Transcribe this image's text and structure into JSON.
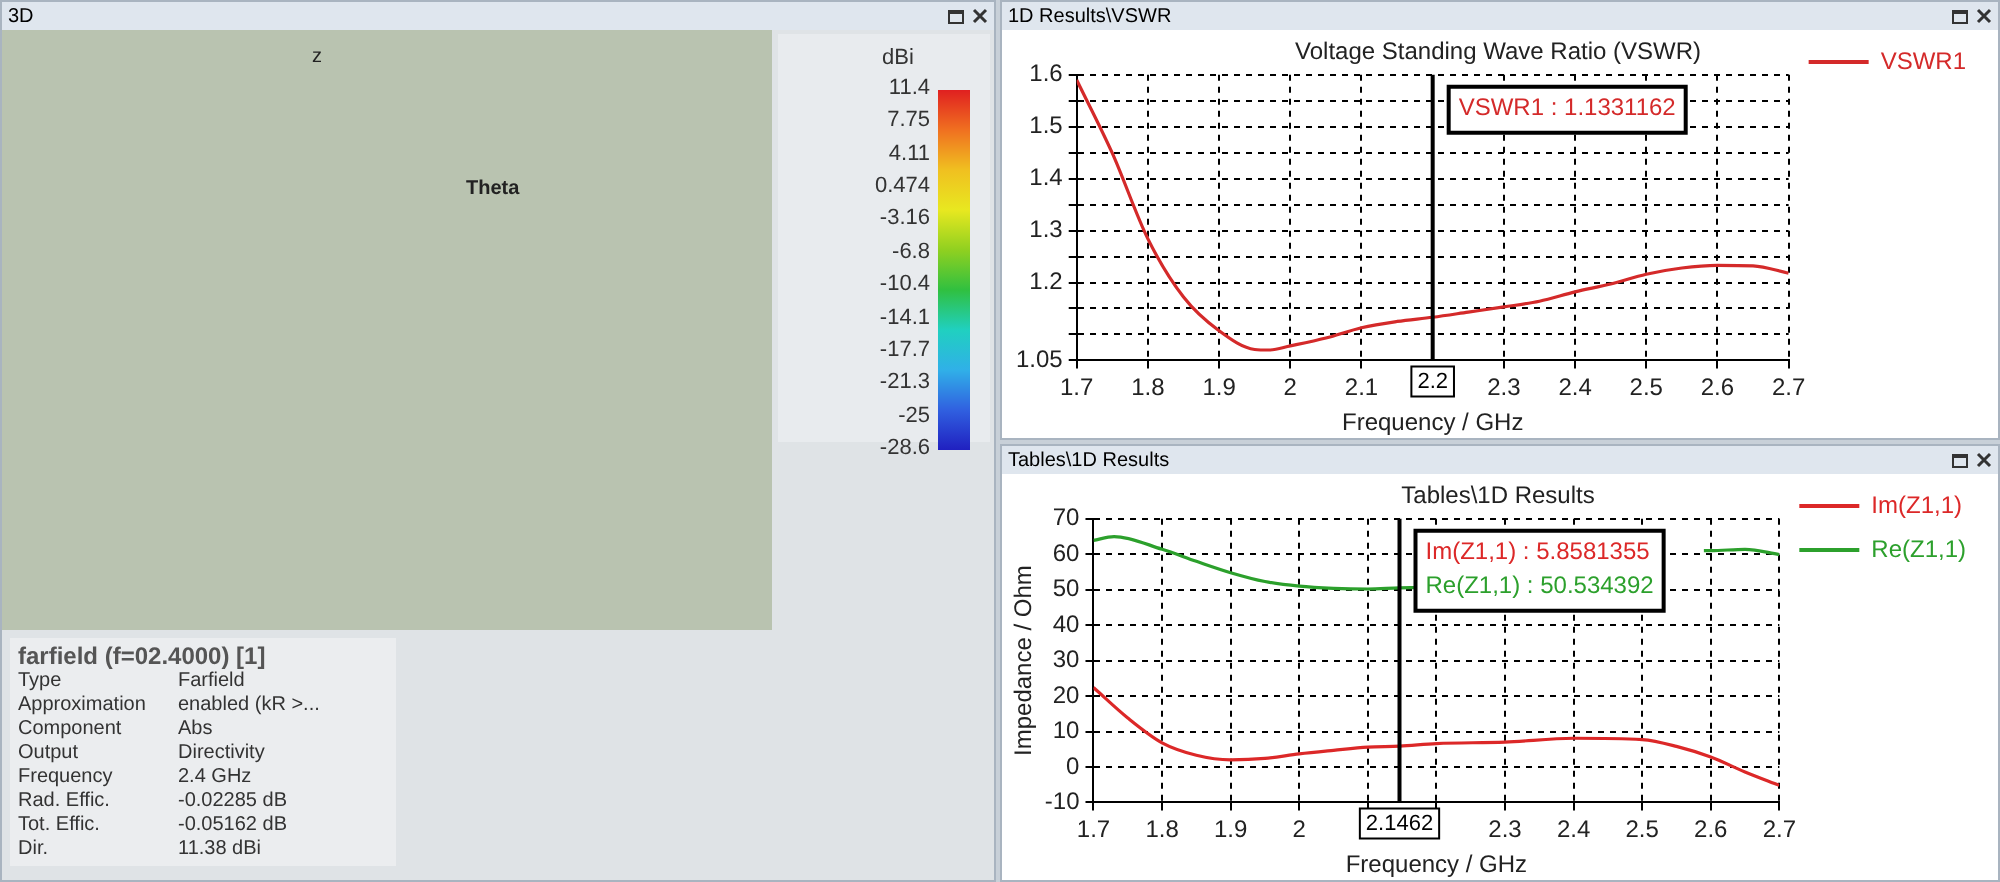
{
  "chart_data": [
    {
      "type": "other",
      "subtitle": "3D",
      "title": "farfield (f=02.4000) [1]",
      "clabel": "dBi",
      "annotations": [
        "z",
        "Theta",
        "Type",
        "Farfield",
        "Approximation",
        "enabled (kR >...",
        "Component",
        "Abs",
        "Output",
        "Directivity",
        "Frequency",
        "2.4 GHz",
        "Rad. Effic.",
        "-0.02285 dB",
        "Tot. Effic.",
        "-0.05162 dB",
        "Dir.",
        "11.38 dBi",
        "11.4",
        "7.75",
        "4.11",
        "0.474",
        "-3.16",
        "-6.8",
        "-10.4",
        "-14.1",
        "-17.7",
        "-21.3",
        "-25",
        "-28.6"
      ]
    },
    {
      "type": "line",
      "subtitle": "1D Results\\VSWR",
      "title": "Voltage Standing Wave Ratio (VSWR)",
      "xlabel": "Frequency / GHz",
      "x": [
        1.7,
        1.75,
        1.8,
        1.85,
        1.9,
        1.95,
        1.97,
        2.0,
        2.05,
        2.1,
        2.15,
        2.2,
        2.25,
        2.3,
        2.35,
        2.4,
        2.45,
        2.5,
        2.55,
        2.6,
        2.65,
        2.7
      ],
      "series": [
        {
          "name": "VSWR1",
          "color": "#d42a2a",
          "values": [
            1.59,
            1.449,
            1.284,
            1.172,
            1.107,
            1.071,
            1.07,
            1.078,
            1.093,
            1.113,
            1.125,
            1.1331162,
            1.143,
            1.153,
            1.164,
            1.182,
            1.197,
            1.216,
            1.228,
            1.233,
            1.232,
            1.218
          ]
        }
      ],
      "xlim": [
        1.7,
        2.7
      ],
      "xticks": [
        1.7,
        1.8,
        1.9,
        2,
        2.1,
        2.3,
        2.4,
        2.5,
        2.6,
        2.7
      ],
      "ylim": [
        1.05,
        1.6
      ],
      "yticks": [
        1.05,
        {
          "value": 1.1,
          "label": null
        },
        {
          "value": 1.15,
          "label": null
        },
        1.2,
        {
          "value": 1.25,
          "label": null
        },
        1.3,
        {
          "value": 1.35,
          "label": null
        },
        1.4,
        {
          "value": 1.45,
          "label": null
        },
        1.5,
        {
          "value": 1.55,
          "label": null
        },
        1.6
      ],
      "ref_lines": [
        {
          "axis": "x",
          "value": 2.2,
          "label": "2.2"
        }
      ],
      "annotations": [
        "VSWR1 : 1.1331162"
      ],
      "grid": true,
      "legend": "right",
      "line_style": "solid",
      "marker": "none"
    },
    {
      "type": "line",
      "subtitle": "Tables\\1D Results",
      "title": "Tables\\1D Results",
      "xlabel": "Frequency / GHz",
      "ylabel": "Impedance / Ohm",
      "series": [
        {
          "name": "Im(Z1,1)",
          "color": "#dc2828",
          "x": [
            1.7,
            1.75,
            1.8,
            1.85,
            1.9,
            1.95,
            2.0,
            2.05,
            2.1,
            2.1462,
            2.2,
            2.3,
            2.4,
            2.5,
            2.55,
            2.6,
            2.65,
            2.7
          ],
          "values": [
            22.4,
            13.8,
            6.8,
            3.3,
            2.0,
            2.4,
            3.7,
            4.7,
            5.6,
            5.8581355,
            6.6,
            7.0,
            8.1,
            7.7,
            5.8,
            2.8,
            -1.4,
            -5.2
          ]
        },
        {
          "name": "Re(Z1,1)",
          "color": "#2ca02c",
          "x": [
            1.7,
            1.73,
            1.8,
            1.85,
            1.9,
            1.95,
            2.0,
            2.05,
            2.1,
            2.1462,
            2.17,
            2.3,
            2.4,
            2.5,
            2.59,
            2.6,
            2.65,
            2.7
          ],
          "values": [
            63.9,
            65,
            61.4,
            58,
            54.8,
            52.3,
            51,
            50.4,
            50.2,
            50.534392,
            50.6,
            null,
            null,
            null,
            61,
            61,
            61.4,
            59.9
          ]
        }
      ],
      "xlim": [
        1.7,
        2.7
      ],
      "xticks": [
        1.7,
        1.8,
        1.9,
        2,
        {
          "value": 2.1,
          "label": null
        },
        {
          "value": 2.2,
          "label": null
        },
        2.3,
        2.4,
        2.5,
        2.6,
        2.7
      ],
      "ylim": [
        -10,
        70
      ],
      "yticks": [
        -10,
        0,
        10,
        20,
        30,
        40,
        50,
        60,
        70
      ],
      "ref_lines": [
        {
          "axis": "x",
          "value": 2.1462,
          "label": "2.1462"
        }
      ],
      "annotations": [
        "Im(Z1,1) : 5.8581355",
        "Re(Z1,1) : 50.534392"
      ],
      "grid": true,
      "legend": "right",
      "line_style": "solid",
      "marker": "none"
    }
  ]
}
